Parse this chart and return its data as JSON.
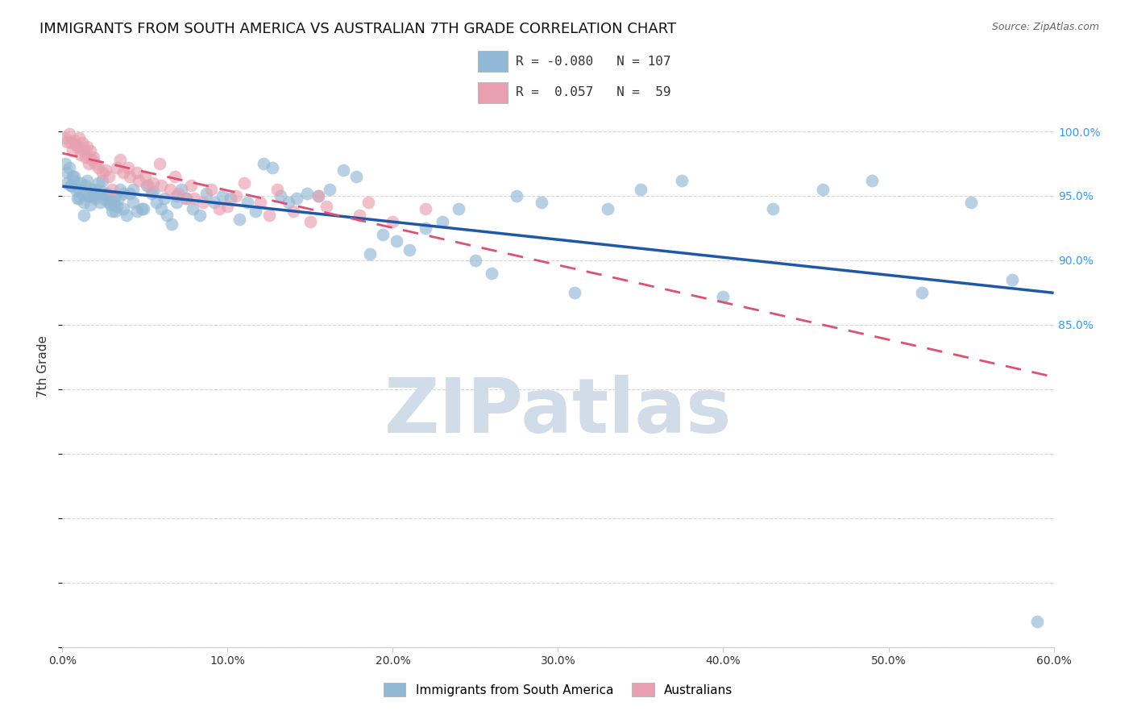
{
  "title": "IMMIGRANTS FROM SOUTH AMERICA VS AUSTRALIAN 7TH GRADE CORRELATION CHART",
  "source": "Source: ZipAtlas.com",
  "ylabel": "7th Grade",
  "ylabel_right_ticks": [
    60.0,
    85.0,
    90.0,
    95.0,
    100.0
  ],
  "ylabel_right_labels": [
    "",
    "85.0%",
    "90.0%",
    "95.0%",
    "100.0%"
  ],
  "xlim": [
    0.0,
    60.0
  ],
  "ylim": [
    60.0,
    103.5
  ],
  "blue_R": -0.08,
  "blue_N": 107,
  "pink_R": 0.057,
  "pink_N": 59,
  "blue_color": "#91b8d4",
  "pink_color": "#e8a0b0",
  "blue_line_color": "#2058a8",
  "pink_line_color": "#e05070",
  "watermark": "ZIPatlas",
  "watermark_color": "#d0dce8",
  "legend_label_blue": "Immigrants from South America",
  "legend_label_pink": "Australians",
  "blue_points_x": [
    0.2,
    0.3,
    0.4,
    0.5,
    0.6,
    0.7,
    0.8,
    0.9,
    1.0,
    1.1,
    1.2,
    1.3,
    1.4,
    1.5,
    1.6,
    1.7,
    1.8,
    1.9,
    2.0,
    2.1,
    2.2,
    2.3,
    2.4,
    2.5,
    2.6,
    2.7,
    2.8,
    2.9,
    3.0,
    3.1,
    3.2,
    3.3,
    3.4,
    3.5,
    3.7,
    3.9,
    4.1,
    4.3,
    4.5,
    4.8,
    5.1,
    5.4,
    5.7,
    6.0,
    6.3,
    6.6,
    6.9,
    7.2,
    7.5,
    7.9,
    8.3,
    8.7,
    9.2,
    9.7,
    10.2,
    10.7,
    11.2,
    11.7,
    12.2,
    12.7,
    13.2,
    13.7,
    14.2,
    14.8,
    15.5,
    16.2,
    17.0,
    17.8,
    18.6,
    19.4,
    20.2,
    21.0,
    22.0,
    23.0,
    24.0,
    25.0,
    26.0,
    27.5,
    29.0,
    31.0,
    33.0,
    35.0,
    37.5,
    40.0,
    43.0,
    46.0,
    49.0,
    52.0,
    55.0,
    57.5,
    59.0,
    0.3,
    0.5,
    0.7,
    1.0,
    1.3,
    1.6,
    2.0,
    2.4,
    2.8,
    3.2,
    3.7,
    4.3,
    4.9,
    5.5,
    6.2,
    6.9
  ],
  "blue_points_y": [
    97.5,
    96.8,
    97.2,
    95.8,
    96.5,
    96.2,
    95.5,
    94.8,
    95.5,
    96.0,
    95.1,
    94.5,
    95.8,
    96.2,
    95.0,
    94.3,
    95.5,
    95.0,
    94.8,
    95.2,
    96.0,
    94.5,
    95.3,
    95.1,
    94.7,
    95.2,
    95.0,
    94.3,
    93.8,
    94.5,
    95.0,
    94.2,
    94.8,
    95.5,
    94.0,
    93.5,
    95.2,
    94.5,
    93.8,
    94.0,
    95.8,
    95.2,
    94.5,
    94.0,
    93.5,
    92.8,
    94.5,
    95.5,
    94.8,
    94.0,
    93.5,
    95.2,
    94.5,
    95.0,
    94.8,
    93.2,
    94.5,
    93.8,
    97.5,
    97.2,
    95.0,
    94.5,
    94.8,
    95.2,
    95.0,
    95.5,
    97.0,
    96.5,
    90.5,
    92.0,
    91.5,
    90.8,
    92.5,
    93.0,
    94.0,
    90.0,
    89.0,
    95.0,
    94.5,
    87.5,
    94.0,
    95.5,
    96.2,
    87.2,
    94.0,
    95.5,
    96.2,
    87.5,
    94.5,
    88.5,
    62.0,
    96.0,
    95.8,
    96.5,
    94.8,
    93.5,
    95.0,
    95.5,
    96.2,
    94.5,
    93.8,
    95.2,
    95.5,
    94.0,
    95.3,
    94.8,
    95.0
  ],
  "pink_points_x": [
    0.2,
    0.3,
    0.4,
    0.5,
    0.6,
    0.7,
    0.8,
    0.9,
    1.0,
    1.1,
    1.2,
    1.3,
    1.4,
    1.5,
    1.6,
    1.7,
    1.8,
    1.9,
    2.0,
    2.2,
    2.4,
    2.6,
    2.8,
    3.0,
    3.3,
    3.7,
    4.1,
    4.6,
    5.2,
    5.9,
    6.8,
    7.8,
    9.0,
    10.5,
    12.0,
    14.0,
    16.0,
    18.0,
    20.0,
    8.0,
    10.0,
    12.5,
    15.0,
    3.5,
    4.0,
    4.5,
    5.0,
    5.5,
    6.0,
    6.5,
    7.0,
    7.5,
    8.5,
    9.5,
    11.0,
    13.0,
    15.5,
    18.5,
    22.0
  ],
  "pink_points_y": [
    99.5,
    99.2,
    99.8,
    99.1,
    98.5,
    99.3,
    99.0,
    98.8,
    99.5,
    98.2,
    99.1,
    98.5,
    98.0,
    98.8,
    97.5,
    98.5,
    97.8,
    98.0,
    97.5,
    97.2,
    96.8,
    97.0,
    96.5,
    95.5,
    97.2,
    96.8,
    96.5,
    96.2,
    95.8,
    97.5,
    96.5,
    95.8,
    95.5,
    95.0,
    94.5,
    93.8,
    94.2,
    93.5,
    93.0,
    94.8,
    94.2,
    93.5,
    93.0,
    97.8,
    97.2,
    96.8,
    96.5,
    96.0,
    95.8,
    95.5,
    95.2,
    94.8,
    94.5,
    94.0,
    96.0,
    95.5,
    95.0,
    94.5,
    94.0
  ],
  "grid_color": "#cccccc",
  "background_color": "#ffffff",
  "title_fontsize": 13,
  "axis_label_fontsize": 11,
  "tick_fontsize": 10,
  "legend_fontsize": 12
}
